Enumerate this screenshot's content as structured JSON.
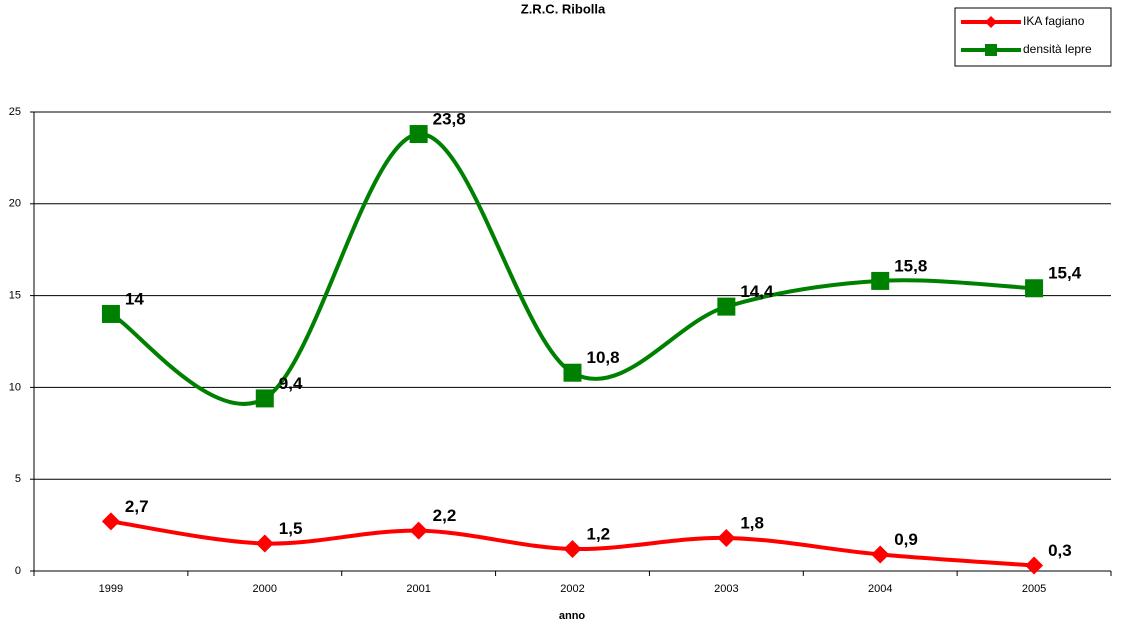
{
  "chart_data": {
    "type": "line",
    "title": "Z.R.C. Ribolla",
    "x_label": "anno",
    "categories": [
      "1999",
      "2000",
      "2001",
      "2002",
      "2003",
      "2004",
      "2005"
    ],
    "series": [
      {
        "name": "IKA fagiano",
        "color": "#ff0000",
        "marker": "diamond",
        "values": [
          2.7,
          1.5,
          2.2,
          1.2,
          1.8,
          0.9,
          0.3
        ],
        "value_labels": [
          "2,7",
          "1,5",
          "2,2",
          "1,2",
          "1,8",
          "0,9",
          "0,3"
        ]
      },
      {
        "name": "densità lepre",
        "color": "#008000",
        "marker": "square",
        "values": [
          14,
          9.4,
          23.8,
          10.8,
          14.4,
          15.8,
          15.4
        ],
        "value_labels": [
          "14",
          "9,4",
          "23,8",
          "10,8",
          "14,4",
          "15,8",
          "15,4"
        ]
      }
    ],
    "ylim": [
      0,
      25
    ],
    "yticks": [
      0,
      5,
      10,
      15,
      20,
      25
    ],
    "grid": true,
    "smooth": true,
    "legend": "top-right"
  }
}
